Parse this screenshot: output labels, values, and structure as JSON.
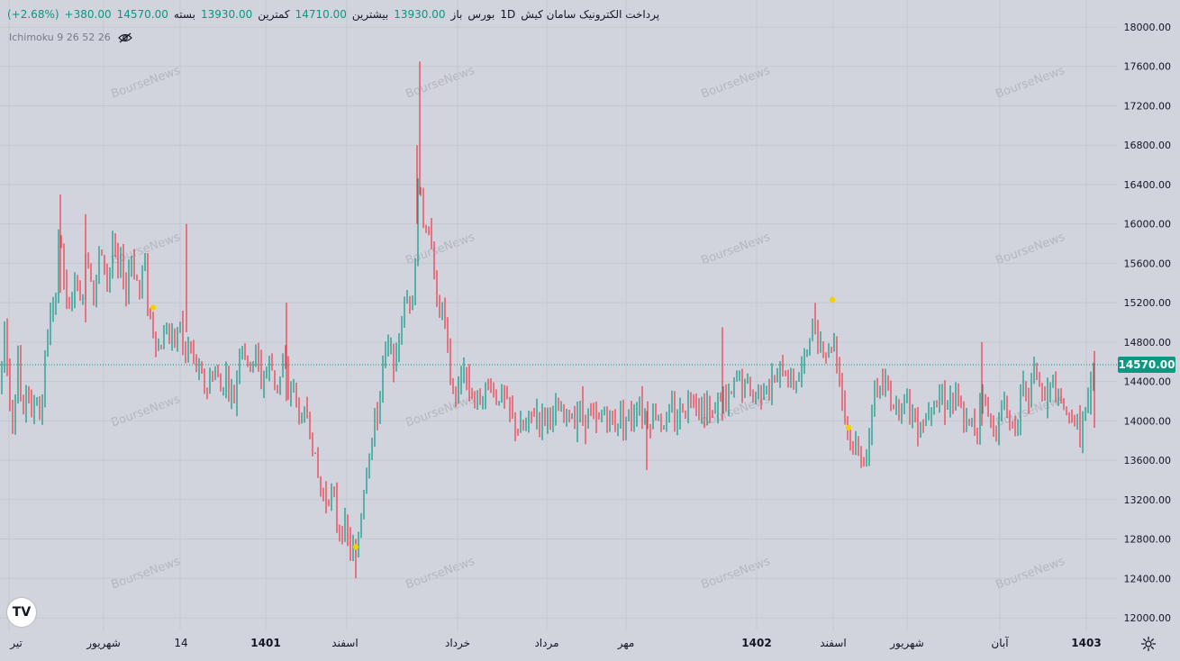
{
  "legend": {
    "title": "پرداخت الکترونیک سامان کیش",
    "interval": "1D",
    "exchange": "بورس",
    "open_label": "باز",
    "open_value": "13930.00",
    "high_label": "بیشترین",
    "high_value": "14710.00",
    "low_label": "کمترین",
    "low_value": "13930.00",
    "close_label": "بسته",
    "close_value": "14570.00",
    "change": "+380.00",
    "change_pct": "(+2.68%)"
  },
  "indicator": {
    "label": "Ichimoku 9 26 52 26"
  },
  "watermark": "BourseNews",
  "logo": "TV",
  "colors": {
    "background": "#d1d4dc",
    "up": "#089981",
    "down": "#f23645",
    "price_tag": "#089981",
    "marker": "#f5d000",
    "grid": "#c4c7d0"
  },
  "chart_data": {
    "type": "ohlc_bar",
    "y_axis_side": "right",
    "ylim": [
      11850,
      18100
    ],
    "y_ticks": [
      "18000.00",
      "17600.00",
      "17200.00",
      "16800.00",
      "16400.00",
      "16000.00",
      "15600.00",
      "15200.00",
      "14800.00",
      "14400.00",
      "14000.00",
      "13600.00",
      "13200.00",
      "12800.00",
      "12400.00",
      "12000.00"
    ],
    "y_tick_values": [
      18000,
      17600,
      17200,
      16800,
      16400,
      16000,
      15600,
      15200,
      14800,
      14400,
      14000,
      13600,
      13200,
      12800,
      12400,
      12000
    ],
    "x_labels": [
      "تیر",
      "شهریور",
      "14",
      "1401",
      "اسفند",
      "خرداد",
      "مرداد",
      "مهر",
      "1402",
      "اسفند",
      "شهریور",
      "آبان",
      "1403"
    ],
    "x_label_bold": [
      false,
      false,
      false,
      true,
      false,
      false,
      false,
      false,
      true,
      false,
      false,
      false,
      true
    ],
    "last_price": 14570,
    "last_price_label": "14570.00",
    "series_points": [
      [
        0,
        14300
      ],
      [
        5,
        15000
      ],
      [
        10,
        14300
      ],
      [
        15,
        13950
      ],
      [
        20,
        14700
      ],
      [
        25,
        13900
      ],
      [
        30,
        14500
      ],
      [
        35,
        14000
      ],
      [
        40,
        14300
      ],
      [
        45,
        14000
      ],
      [
        50,
        14600
      ],
      [
        55,
        15100
      ],
      [
        60,
        15000
      ],
      [
        65,
        15900
      ],
      [
        70,
        15600
      ],
      [
        75,
        15000
      ],
      [
        80,
        15300
      ],
      [
        85,
        15450
      ],
      [
        90,
        15100
      ],
      [
        95,
        15700
      ],
      [
        100,
        15600
      ],
      [
        105,
        15200
      ],
      [
        110,
        15700
      ],
      [
        115,
        15600
      ],
      [
        120,
        15400
      ],
      [
        125,
        15800
      ],
      [
        130,
        15500
      ],
      [
        135,
        15600
      ],
      [
        140,
        15300
      ],
      [
        145,
        15700
      ],
      [
        150,
        15500
      ],
      [
        155,
        15300
      ],
      [
        160,
        15700
      ],
      [
        165,
        15100
      ],
      [
        170,
        14950
      ],
      [
        175,
        14700
      ],
      [
        180,
        14800
      ],
      [
        185,
        15000
      ],
      [
        190,
        14800
      ],
      [
        195,
        14800
      ],
      [
        200,
        15000
      ],
      [
        205,
        14600
      ],
      [
        210,
        14800
      ],
      [
        215,
        14600
      ],
      [
        220,
        14500
      ],
      [
        225,
        14400
      ],
      [
        230,
        14300
      ],
      [
        235,
        14500
      ],
      [
        240,
        14500
      ],
      [
        245,
        14300
      ],
      [
        250,
        14500
      ],
      [
        255,
        14300
      ],
      [
        260,
        14200
      ],
      [
        265,
        14700
      ],
      [
        270,
        14800
      ],
      [
        275,
        14500
      ],
      [
        280,
        14600
      ],
      [
        285,
        14700
      ],
      [
        290,
        14400
      ],
      [
        295,
        14500
      ],
      [
        300,
        14600
      ],
      [
        305,
        14400
      ],
      [
        310,
        14400
      ],
      [
        315,
        14600
      ],
      [
        320,
        14300
      ],
      [
        325,
        14400
      ],
      [
        330,
        14100
      ],
      [
        335,
        14000
      ],
      [
        340,
        14100
      ],
      [
        345,
        13900
      ],
      [
        350,
        13600
      ],
      [
        355,
        13300
      ],
      [
        360,
        13200
      ],
      [
        365,
        13300
      ],
      [
        370,
        13200
      ],
      [
        375,
        12900
      ],
      [
        380,
        12950
      ],
      [
        385,
        12800
      ],
      [
        390,
        12700
      ],
      [
        395,
        12600
      ],
      [
        400,
        13000
      ],
      [
        405,
        13400
      ],
      [
        410,
        13700
      ],
      [
        415,
        13900
      ],
      [
        420,
        14100
      ],
      [
        425,
        14600
      ],
      [
        430,
        14700
      ],
      [
        435,
        14700
      ],
      [
        440,
        14600
      ],
      [
        445,
        15000
      ],
      [
        450,
        15200
      ],
      [
        455,
        15300
      ],
      [
        460,
        15400
      ],
      [
        465,
        16600
      ],
      [
        470,
        16000
      ],
      [
        475,
        15800
      ],
      [
        480,
        15900
      ],
      [
        485,
        15100
      ],
      [
        490,
        15200
      ],
      [
        495,
        14900
      ],
      [
        500,
        14400
      ],
      [
        505,
        14200
      ],
      [
        510,
        14300
      ],
      [
        515,
        14600
      ],
      [
        520,
        14300
      ],
      [
        525,
        14300
      ],
      [
        530,
        14200
      ],
      [
        535,
        14300
      ],
      [
        540,
        14300
      ],
      [
        545,
        14400
      ],
      [
        550,
        14200
      ],
      [
        555,
        14300
      ],
      [
        560,
        14200
      ],
      [
        565,
        14100
      ],
      [
        570,
        14000
      ],
      [
        575,
        13900
      ],
      [
        580,
        13900
      ],
      [
        585,
        13950
      ],
      [
        590,
        14050
      ],
      [
        595,
        14100
      ],
      [
        600,
        14000
      ],
      [
        605,
        14050
      ],
      [
        610,
        14100
      ],
      [
        615,
        14000
      ],
      [
        620,
        14100
      ],
      [
        625,
        14000
      ],
      [
        630,
        14050
      ],
      [
        635,
        14050
      ],
      [
        640,
        14100
      ],
      [
        645,
        14100
      ],
      [
        650,
        14050
      ],
      [
        655,
        14100
      ],
      [
        660,
        13950
      ],
      [
        665,
        14000
      ],
      [
        670,
        14100
      ],
      [
        675,
        14050
      ],
      [
        680,
        13950
      ],
      [
        685,
        14000
      ],
      [
        690,
        14100
      ],
      [
        695,
        14050
      ],
      [
        700,
        14000
      ],
      [
        705,
        14150
      ],
      [
        710,
        14200
      ],
      [
        715,
        14100
      ],
      [
        720,
        14000
      ],
      [
        725,
        14050
      ],
      [
        730,
        14100
      ],
      [
        735,
        13950
      ],
      [
        740,
        14000
      ],
      [
        745,
        14100
      ],
      [
        750,
        14000
      ],
      [
        755,
        14100
      ],
      [
        760,
        14150
      ],
      [
        765,
        14200
      ],
      [
        770,
        14300
      ],
      [
        775,
        14200
      ],
      [
        780,
        14100
      ],
      [
        785,
        14150
      ],
      [
        790,
        14000
      ],
      [
        795,
        14200
      ],
      [
        800,
        14250
      ],
      [
        805,
        14150
      ],
      [
        810,
        14200
      ],
      [
        815,
        14350
      ],
      [
        820,
        14500
      ],
      [
        825,
        14300
      ],
      [
        830,
        14400
      ],
      [
        835,
        14200
      ],
      [
        840,
        14300
      ],
      [
        845,
        14350
      ],
      [
        850,
        14400
      ],
      [
        855,
        14300
      ],
      [
        860,
        14400
      ],
      [
        865,
        14500
      ],
      [
        870,
        14500
      ],
      [
        875,
        14450
      ],
      [
        880,
        14400
      ],
      [
        885,
        14450
      ],
      [
        890,
        14500
      ],
      [
        895,
        14700
      ],
      [
        900,
        14900
      ],
      [
        905,
        15000
      ],
      [
        910,
        14800
      ],
      [
        915,
        14700
      ],
      [
        920,
        14700
      ],
      [
        925,
        14850
      ],
      [
        930,
        14600
      ],
      [
        935,
        14300
      ],
      [
        940,
        13900
      ],
      [
        945,
        13750
      ],
      [
        950,
        13700
      ],
      [
        955,
        13650
      ],
      [
        960,
        13650
      ],
      [
        965,
        13700
      ],
      [
        970,
        14400
      ],
      [
        975,
        14300
      ],
      [
        980,
        14300
      ],
      [
        985,
        14350
      ],
      [
        990,
        14200
      ],
      [
        995,
        14150
      ],
      [
        1000,
        14200
      ],
      [
        1005,
        14250
      ],
      [
        1010,
        14150
      ],
      [
        1015,
        14000
      ],
      [
        1020,
        13980
      ],
      [
        1025,
        14000
      ],
      [
        1030,
        14100
      ],
      [
        1035,
        14300
      ],
      [
        1040,
        14200
      ],
      [
        1045,
        14250
      ],
      [
        1050,
        14200
      ],
      [
        1055,
        14250
      ],
      [
        1060,
        14200
      ],
      [
        1065,
        14150
      ],
      [
        1070,
        13950
      ],
      [
        1075,
        13950
      ],
      [
        1080,
        13950
      ],
      [
        1085,
        13950
      ],
      [
        1090,
        14400
      ],
      [
        1095,
        14100
      ],
      [
        1100,
        13950
      ],
      [
        1105,
        13950
      ],
      [
        1110,
        14000
      ],
      [
        1115,
        14200
      ],
      [
        1120,
        14000
      ],
      [
        1125,
        13950
      ],
      [
        1130,
        14100
      ],
      [
        1135,
        14300
      ],
      [
        1140,
        14200
      ],
      [
        1145,
        14400
      ],
      [
        1150,
        14600
      ],
      [
        1155,
        14300
      ],
      [
        1160,
        14200
      ],
      [
        1165,
        14300
      ],
      [
        1170,
        14400
      ],
      [
        1175,
        14100
      ],
      [
        1180,
        14200
      ],
      [
        1185,
        13950
      ],
      [
        1190,
        14100
      ],
      [
        1195,
        13950
      ],
      [
        1200,
        13900
      ],
      [
        1205,
        14100
      ],
      [
        1210,
        14200
      ],
      [
        1215,
        14570
      ]
    ],
    "markers": [
      {
        "x": 170,
        "y": 15150
      },
      {
        "x": 395,
        "y": 12720
      },
      {
        "x": 924,
        "y": 15230
      },
      {
        "x": 942,
        "y": 13930
      }
    ]
  }
}
